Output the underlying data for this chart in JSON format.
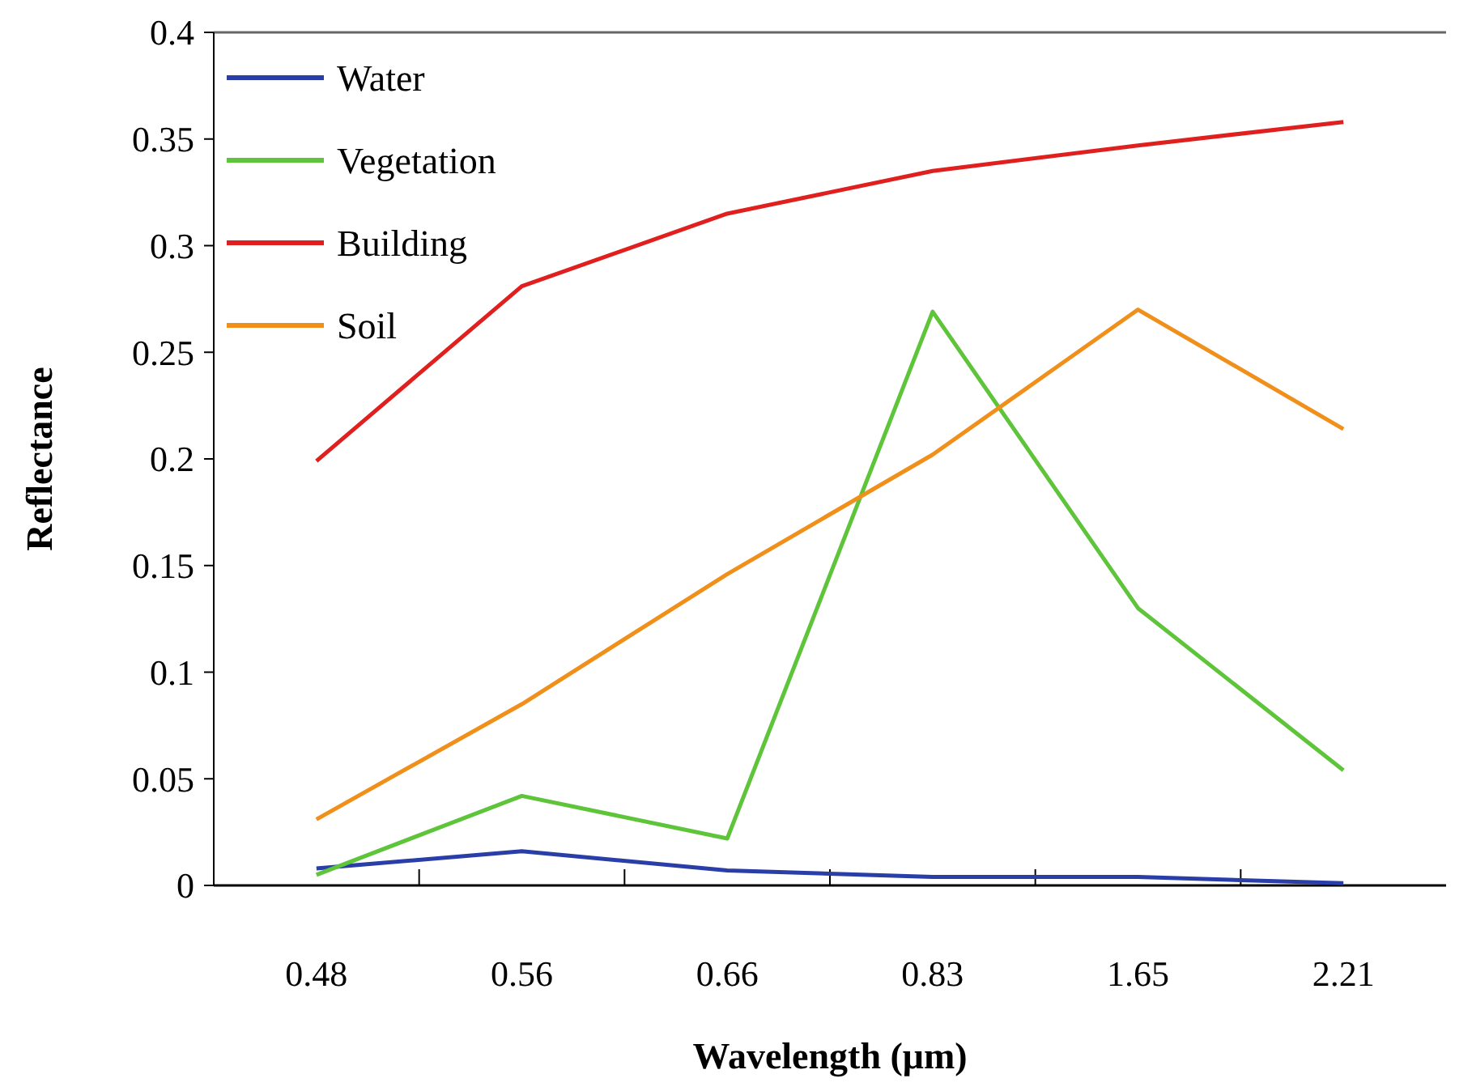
{
  "chart_data": {
    "type": "line",
    "xlabel": "Wavelength (μm)",
    "ylabel": "Reflectance",
    "categories": [
      "0.48",
      "0.56",
      "0.66",
      "0.83",
      "1.65",
      "2.21"
    ],
    "ylim": [
      0,
      0.4
    ],
    "yticks": [
      0,
      0.05,
      0.1,
      0.15,
      0.2,
      0.25,
      0.3,
      0.35,
      0.4
    ],
    "grid": false,
    "legend": "top left",
    "marker": "none",
    "line_style": "solid",
    "series": [
      {
        "name": "Water",
        "color": "#2a3ea8",
        "values": [
          0.008,
          0.016,
          0.007,
          0.004,
          0.004,
          0.001
        ]
      },
      {
        "name": "Vegetation",
        "color": "#5ec43a",
        "values": [
          0.005,
          0.042,
          0.022,
          0.269,
          0.13,
          0.054
        ]
      },
      {
        "name": "Building",
        "color": "#e0201f",
        "values": [
          0.199,
          0.281,
          0.315,
          0.335,
          0.347,
          0.358
        ]
      },
      {
        "name": "Soil",
        "color": "#f0901a",
        "values": [
          0.031,
          0.085,
          0.146,
          0.202,
          0.27,
          0.214
        ]
      }
    ]
  }
}
